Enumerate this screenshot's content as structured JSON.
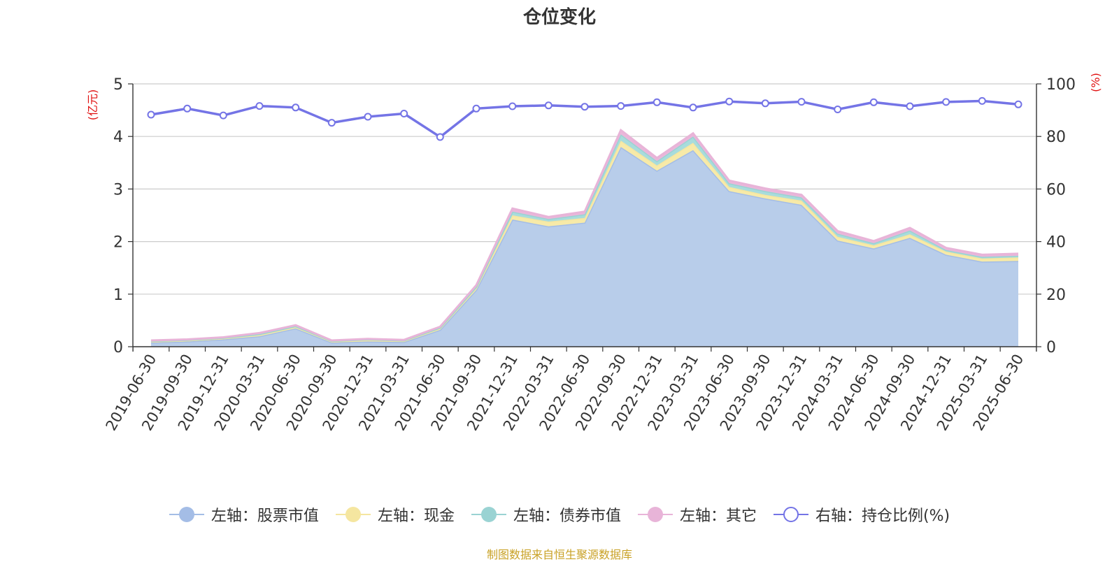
{
  "chart_data": {
    "type": "area",
    "title": "仓位变化",
    "left_axis_unit": "(亿元)",
    "right_axis_unit": "(%)",
    "y_left_lim": [
      0,
      5
    ],
    "y_left_ticks": [
      "0",
      "1",
      "2",
      "3",
      "4",
      "5"
    ],
    "y_right_lim": [
      0,
      100
    ],
    "y_right_ticks": [
      "0",
      "20",
      "40",
      "60",
      "80",
      "100"
    ],
    "grid": true,
    "legend_position": "bottom",
    "categories": [
      "2019-06-30",
      "2019-09-30",
      "2019-12-31",
      "2020-03-31",
      "2020-06-30",
      "2020-09-30",
      "2020-12-31",
      "2021-03-31",
      "2021-06-30",
      "2021-09-30",
      "2021-12-31",
      "2022-03-31",
      "2022-06-30",
      "2022-09-30",
      "2022-12-31",
      "2023-03-31",
      "2023-06-30",
      "2023-09-30",
      "2023-12-31",
      "2024-03-31",
      "2024-06-30",
      "2024-09-30",
      "2024-12-31",
      "2025-03-31",
      "2025-06-30"
    ],
    "series": [
      {
        "name": "左轴：股票市值",
        "axis": "left",
        "color": "#a4bde6",
        "fill": "#b8cdea",
        "values": [
          0.08,
          0.1,
          0.14,
          0.2,
          0.35,
          0.08,
          0.1,
          0.09,
          0.32,
          1.08,
          2.42,
          2.29,
          2.36,
          3.8,
          3.35,
          3.74,
          2.96,
          2.82,
          2.7,
          2.02,
          1.87,
          2.07,
          1.75,
          1.62,
          1.63
        ]
      },
      {
        "name": "左轴：现金",
        "axis": "left",
        "color": "#f5e6a0",
        "fill": "#f7eaa8",
        "values": [
          0.02,
          0.02,
          0.02,
          0.03,
          0.03,
          0.02,
          0.03,
          0.02,
          0.03,
          0.04,
          0.08,
          0.09,
          0.09,
          0.12,
          0.1,
          0.14,
          0.08,
          0.07,
          0.08,
          0.07,
          0.06,
          0.07,
          0.06,
          0.06,
          0.07
        ]
      },
      {
        "name": "左轴：债券市值",
        "axis": "left",
        "color": "#9ad3d3",
        "fill": "#a8dcdc",
        "values": [
          0.01,
          0.01,
          0.01,
          0.01,
          0.01,
          0.01,
          0.01,
          0.01,
          0.01,
          0.02,
          0.07,
          0.05,
          0.07,
          0.12,
          0.08,
          0.12,
          0.07,
          0.07,
          0.06,
          0.06,
          0.04,
          0.07,
          0.03,
          0.03,
          0.03
        ]
      },
      {
        "name": "左轴：其它",
        "axis": "left",
        "color": "#e8b4d8",
        "fill": "#eab7da",
        "values": [
          0.01,
          0.01,
          0.01,
          0.02,
          0.02,
          0.01,
          0.01,
          0.01,
          0.02,
          0.03,
          0.06,
          0.04,
          0.05,
          0.08,
          0.06,
          0.06,
          0.05,
          0.05,
          0.05,
          0.05,
          0.04,
          0.05,
          0.04,
          0.04,
          0.04
        ]
      },
      {
        "name": "右轴：持仓比例(%)",
        "axis": "right",
        "color": "#7474e6",
        "values": [
          88.3,
          90.6,
          88.0,
          91.6,
          91.0,
          85.2,
          87.5,
          88.7,
          79.8,
          90.6,
          91.5,
          91.8,
          91.3,
          91.6,
          93.0,
          91.0,
          93.3,
          92.6,
          93.2,
          90.3,
          93.0,
          91.5,
          93.1,
          93.5,
          92.2
        ]
      }
    ]
  },
  "source_note": "制图数据来自恒生聚源数据库"
}
